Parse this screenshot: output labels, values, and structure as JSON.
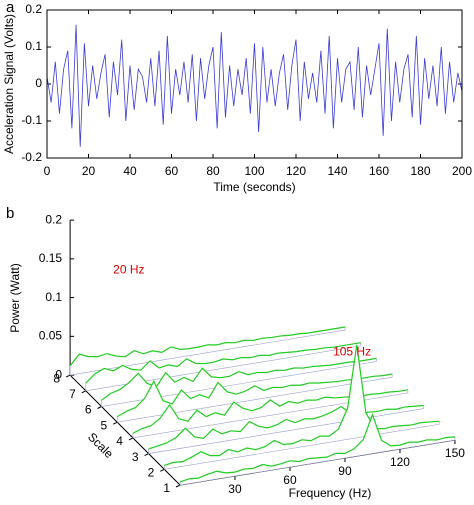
{
  "chart_data": [
    {
      "type": "line",
      "panel": "a",
      "ylabel": "Acceleration Signal (Volts)",
      "xlabel": "Time (seconds)",
      "color": "#3a3ad8",
      "xlim": [
        0,
        200
      ],
      "xticks": [
        0,
        20,
        40,
        60,
        80,
        100,
        120,
        140,
        160,
        180,
        200
      ],
      "ylim": [
        -0.2,
        0.2
      ],
      "yticks": [
        -0.2,
        -0.1,
        0,
        0.1,
        0.2
      ],
      "x": [
        0,
        2,
        4,
        6,
        8,
        10,
        12,
        14,
        16,
        18,
        20,
        22,
        24,
        26,
        28,
        30,
        32,
        34,
        36,
        38,
        40,
        42,
        44,
        46,
        48,
        50,
        52,
        54,
        56,
        58,
        60,
        62,
        64,
        66,
        68,
        70,
        72,
        74,
        76,
        78,
        80,
        82,
        84,
        86,
        88,
        90,
        92,
        94,
        96,
        98,
        100,
        102,
        104,
        106,
        108,
        110,
        112,
        114,
        116,
        118,
        120,
        122,
        124,
        126,
        128,
        130,
        132,
        134,
        136,
        138,
        140,
        142,
        144,
        146,
        148,
        150,
        152,
        154,
        156,
        158,
        160,
        162,
        164,
        166,
        168,
        170,
        172,
        174,
        176,
        178,
        180,
        182,
        184,
        186,
        188,
        190,
        192,
        194,
        196,
        198,
        200
      ],
      "values": [
        0.02,
        -0.05,
        0.06,
        -0.08,
        0.04,
        0.09,
        -0.12,
        0.16,
        -0.17,
        0.11,
        -0.06,
        0.05,
        -0.04,
        0.03,
        0.08,
        -0.09,
        0.06,
        -0.03,
        0.12,
        -0.1,
        0.05,
        -0.07,
        0.04,
        0.02,
        -0.05,
        0.07,
        -0.06,
        0.09,
        -0.11,
        0.13,
        -0.08,
        0.04,
        -0.03,
        0.06,
        -0.05,
        0.08,
        -0.1,
        0.07,
        -0.04,
        0.05,
        0.1,
        -0.12,
        0.14,
        -0.09,
        0.05,
        -0.06,
        0.04,
        -0.03,
        0.07,
        -0.08,
        0.11,
        -0.13,
        0.1,
        -0.05,
        0.04,
        -0.06,
        0.03,
        0.08,
        -0.07,
        0.05,
        0.12,
        -0.1,
        0.06,
        -0.04,
        0.03,
        -0.05,
        0.09,
        -0.08,
        0.13,
        -0.12,
        0.07,
        -0.05,
        0.04,
        0.06,
        -0.07,
        0.1,
        -0.09,
        0.05,
        -0.03,
        0.04,
        0.11,
        -0.14,
        0.15,
        -0.1,
        0.06,
        -0.05,
        0.04,
        0.08,
        -0.09,
        0.13,
        -0.11,
        0.07,
        -0.04,
        0.05,
        -0.06,
        0.1,
        -0.08,
        0.06,
        -0.05,
        0.03,
        -0.02
      ]
    },
    {
      "type": "waterfall3d",
      "panel": "b",
      "zlabel": "Power (Watt)",
      "ylabel": "Scale",
      "xlabel": "Frequency (Hz)",
      "color": "#22cc22",
      "xlim": [
        0,
        150
      ],
      "xticks": [
        30,
        60,
        90,
        120,
        150
      ],
      "zlim": [
        0,
        0.2
      ],
      "zticks": [
        0,
        0.05,
        0.1,
        0.15,
        0.2
      ],
      "categories": [
        1,
        2,
        3,
        4,
        5,
        6,
        7,
        8
      ],
      "x": [
        0,
        5,
        10,
        15,
        20,
        25,
        30,
        35,
        40,
        45,
        50,
        55,
        60,
        65,
        70,
        75,
        80,
        85,
        90,
        95,
        100,
        105,
        110,
        115,
        120,
        125,
        130,
        135,
        140,
        145,
        150
      ],
      "annotations": [
        {
          "text": "20 Hz",
          "x": 20
        },
        {
          "text": "105 Hz",
          "x": 105
        }
      ],
      "series": [
        {
          "values": [
            0.004,
            0.006,
            0.005,
            0.008,
            0.01,
            0.006,
            0.005,
            0.007,
            0.006,
            0.009,
            0.005,
            0.006,
            0.008,
            0.005,
            0.007,
            0.006,
            0.005,
            0.008,
            0.006,
            0.01,
            0.02,
            0.05,
            0.015,
            0.006,
            0.005,
            0.007,
            0.005,
            0.006,
            0.004,
            0.005,
            0.004
          ]
        },
        {
          "values": [
            0.005,
            0.007,
            0.006,
            0.01,
            0.015,
            0.008,
            0.006,
            0.012,
            0.007,
            0.01,
            0.006,
            0.008,
            0.014,
            0.007,
            0.006,
            0.009,
            0.006,
            0.01,
            0.008,
            0.015,
            0.04,
            0.12,
            0.03,
            0.008,
            0.006,
            0.007,
            0.006,
            0.005,
            0.006,
            0.005,
            0.004
          ]
        },
        {
          "values": [
            0.006,
            0.008,
            0.01,
            0.015,
            0.025,
            0.012,
            0.008,
            0.018,
            0.01,
            0.012,
            0.009,
            0.02,
            0.012,
            0.008,
            0.01,
            0.015,
            0.009,
            0.012,
            0.01,
            0.012,
            0.015,
            0.02,
            0.01,
            0.008,
            0.007,
            0.006,
            0.007,
            0.005,
            0.006,
            0.005,
            0.004
          ]
        },
        {
          "values": [
            0.006,
            0.01,
            0.012,
            0.02,
            0.035,
            0.015,
            0.01,
            0.022,
            0.012,
            0.015,
            0.01,
            0.025,
            0.015,
            0.01,
            0.012,
            0.02,
            0.01,
            0.014,
            0.01,
            0.012,
            0.01,
            0.012,
            0.009,
            0.008,
            0.007,
            0.006,
            0.006,
            0.005,
            0.005,
            0.004,
            0.004
          ]
        },
        {
          "values": [
            0.007,
            0.012,
            0.015,
            0.025,
            0.045,
            0.018,
            0.012,
            0.028,
            0.015,
            0.018,
            0.012,
            0.03,
            0.016,
            0.011,
            0.013,
            0.018,
            0.01,
            0.012,
            0.01,
            0.011,
            0.009,
            0.01,
            0.008,
            0.007,
            0.006,
            0.006,
            0.005,
            0.005,
            0.005,
            0.004,
            0.004
          ]
        },
        {
          "values": [
            0.008,
            0.015,
            0.018,
            0.025,
            0.035,
            0.02,
            0.014,
            0.03,
            0.016,
            0.02,
            0.013,
            0.028,
            0.015,
            0.012,
            0.012,
            0.016,
            0.01,
            0.011,
            0.009,
            0.01,
            0.008,
            0.009,
            0.007,
            0.007,
            0.006,
            0.005,
            0.005,
            0.005,
            0.004,
            0.004,
            0.004
          ]
        },
        {
          "values": [
            0.01,
            0.02,
            0.025,
            0.02,
            0.025,
            0.018,
            0.015,
            0.025,
            0.014,
            0.016,
            0.012,
            0.02,
            0.012,
            0.01,
            0.01,
            0.012,
            0.009,
            0.01,
            0.008,
            0.009,
            0.007,
            0.008,
            0.007,
            0.006,
            0.006,
            0.005,
            0.005,
            0.004,
            0.004,
            0.004,
            0.004
          ]
        },
        {
          "values": [
            0.012,
            0.025,
            0.02,
            0.018,
            0.02,
            0.015,
            0.012,
            0.018,
            0.012,
            0.014,
            0.01,
            0.015,
            0.01,
            0.009,
            0.009,
            0.01,
            0.008,
            0.009,
            0.007,
            0.008,
            0.006,
            0.007,
            0.006,
            0.006,
            0.005,
            0.005,
            0.004,
            0.004,
            0.004,
            0.004,
            0.004
          ]
        }
      ]
    }
  ]
}
